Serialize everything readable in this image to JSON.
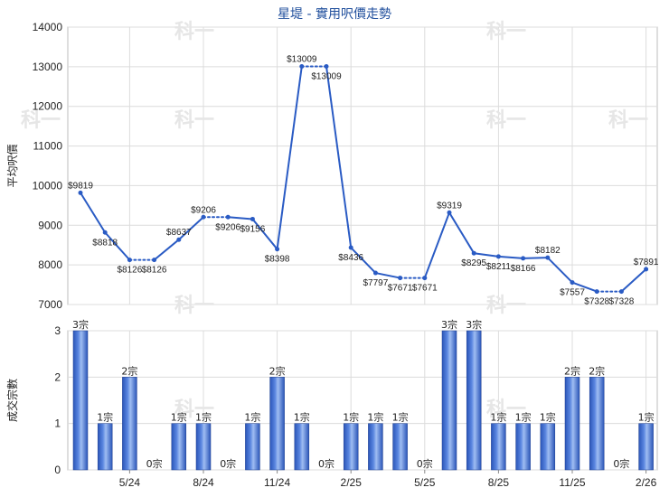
{
  "chart_data": [
    {
      "type": "line",
      "title": "星堤 - 實用呎價走勢",
      "ylabel": "平均呎價",
      "ylim": [
        7000,
        14000
      ],
      "yticks": [
        7000,
        8000,
        9000,
        10000,
        11000,
        12000,
        13000,
        14000
      ],
      "grid": true,
      "series": [
        {
          "values": [
            9819,
            8818,
            8126,
            8126,
            8637,
            9206,
            9206,
            9156,
            8398,
            13009,
            13009,
            8436,
            7797,
            7671,
            7671,
            9319,
            8295,
            8211,
            8166,
            8182,
            7557,
            7328,
            7328,
            7891
          ],
          "labels": [
            "$9819",
            "$8818",
            "$8126",
            "$8126",
            "$8637",
            "$9206",
            "$9206",
            "$9156",
            "$8398",
            "$13009",
            "$13009",
            "$8436",
            "$7797",
            "$7671",
            "$7671",
            "$9319",
            "$8295",
            "$8211",
            "$8166",
            "$8182",
            "$7557",
            "$7328",
            "$7328",
            "$7891"
          ]
        }
      ],
      "watermark": "科一"
    },
    {
      "type": "bar",
      "ylabel": "成交宗數",
      "ylim": [
        0,
        3
      ],
      "yticks": [
        0,
        1,
        2,
        3
      ],
      "categories": [
        "5/24",
        "8/24",
        "11/24",
        "2/25",
        "5/25",
        "8/25",
        "11/25",
        "2/26"
      ],
      "values": [
        3,
        1,
        2,
        0,
        1,
        1,
        0,
        1,
        2,
        1,
        0,
        1,
        1,
        1,
        0,
        3,
        3,
        1,
        1,
        1,
        2,
        2,
        0,
        1
      ],
      "labels": [
        "3宗",
        "1宗",
        "2宗",
        "0宗",
        "1宗",
        "1宗",
        "0宗",
        "1宗",
        "2宗",
        "1宗",
        "0宗",
        "1宗",
        "1宗",
        "1宗",
        "0宗",
        "3宗",
        "3宗",
        "1宗",
        "1宗",
        "1宗",
        "2宗",
        "2宗",
        "0宗",
        "1宗"
      ],
      "bar_color": "#2f5fc4"
    }
  ]
}
